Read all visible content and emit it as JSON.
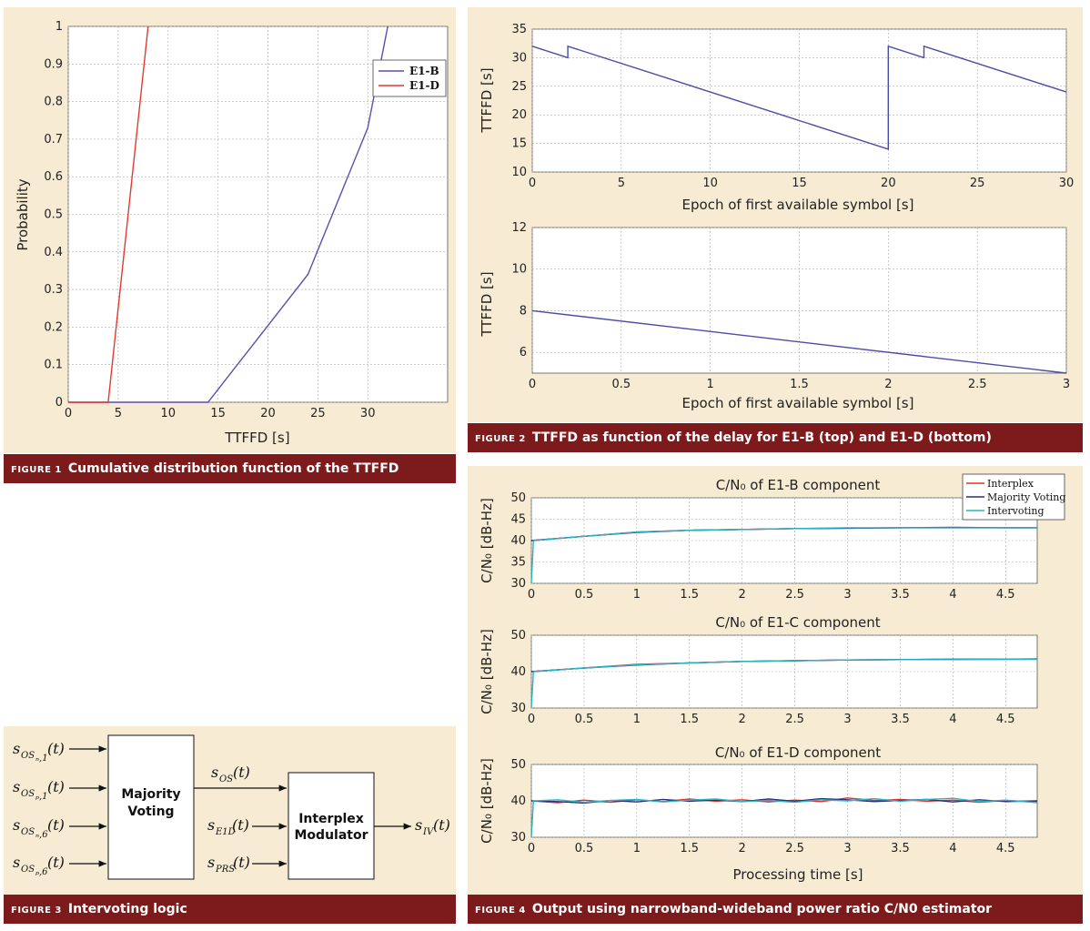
{
  "figure1": {
    "caption_num": "FIGURE 1",
    "caption_text": "Cumulative distribution function of the TTFFD",
    "chart_data": {
      "type": "line",
      "xlabel": "TTFFD [s]",
      "ylabel": "Probability",
      "xlim": [
        0,
        38
      ],
      "ylim": [
        0,
        1
      ],
      "xticks": [
        0,
        5,
        10,
        15,
        20,
        25,
        30
      ],
      "yticks": [
        0,
        0.1,
        0.2,
        0.3,
        0.4,
        0.5,
        0.6,
        0.7,
        0.8,
        0.9,
        1
      ],
      "grid": true,
      "legend_position": "top-right",
      "series": [
        {
          "name": "E1-B",
          "color": "#5a4fb0",
          "x": [
            0,
            14,
            24,
            30,
            32
          ],
          "y": [
            0,
            0,
            0.34,
            0.73,
            1
          ]
        },
        {
          "name": "E1-D",
          "color": "#e23b2e",
          "x": [
            0,
            4,
            8
          ],
          "y": [
            0,
            0,
            1
          ]
        }
      ]
    }
  },
  "figure2": {
    "caption_num": "FIGURE 2",
    "caption_text": "TTFFD as function of the delay for E1-B (top) and E1-D (bottom)",
    "chart_data": [
      {
        "type": "line",
        "xlabel": "Epoch of first available symbol [s]",
        "ylabel": "TTFFD [s]",
        "xlim": [
          0,
          30
        ],
        "ylim": [
          10,
          35
        ],
        "xticks": [
          0,
          5,
          10,
          15,
          20,
          25,
          30
        ],
        "yticks": [
          10,
          15,
          20,
          25,
          30,
          35
        ],
        "grid": true,
        "series": [
          {
            "color": "#4a4ca8",
            "x": [
              0,
              2,
              2,
              20,
              20,
              22,
              22,
              30
            ],
            "y": [
              32,
              30,
              32,
              14,
              32,
              30,
              32,
              24
            ]
          }
        ]
      },
      {
        "type": "line",
        "xlabel": "Epoch of first available symbol [s]",
        "ylabel": "TTFFD [s]",
        "xlim": [
          0,
          3
        ],
        "ylim": [
          5,
          12
        ],
        "xticks": [
          0,
          0.5,
          1,
          1.5,
          2,
          2.5,
          3
        ],
        "yticks": [
          6,
          8,
          10,
          12
        ],
        "grid": true,
        "series": [
          {
            "color": "#4a4ca8",
            "x": [
              0,
              3
            ],
            "y": [
              8,
              5
            ]
          }
        ]
      }
    ]
  },
  "figure3": {
    "caption_num": "FIGURE 3",
    "caption_text": "Intervoting logic",
    "blocks": {
      "majority_line1": "Majority",
      "majority_line2": "Voting",
      "interplex_line1": "Interplex",
      "interplex_line2": "Modulator"
    },
    "signals": {
      "input1": {
        "s": "s",
        "sub": "OS",
        "sub2": "ₙ,1",
        "arg": "(t)"
      },
      "input2": {
        "s": "s",
        "sub": "OS",
        "sub2": "ₚ,1",
        "arg": "(t)"
      },
      "input3": {
        "s": "s",
        "sub": "OS",
        "sub2": "ₙ,6",
        "arg": "(t)"
      },
      "input4": {
        "s": "s",
        "sub": "OS",
        "sub2": "ₚ,6",
        "arg": "(t)"
      },
      "os": {
        "s": "s",
        "sub": "OS",
        "arg": "(t)"
      },
      "e1d": {
        "s": "s",
        "sub": "E1D",
        "arg": "(t)"
      },
      "prs": {
        "s": "s",
        "sub": "PRS",
        "arg": "(t)"
      },
      "iv": {
        "s": "s",
        "sub": "IV",
        "arg": "(t)"
      }
    }
  },
  "figure4": {
    "caption_num": "FIGURE 4",
    "caption_text": "Output using narrowband-wideband power ratio C/N0 estimator",
    "legend": [
      "Interplex",
      "Majority Voting",
      "Intervoting"
    ],
    "series_colors": {
      "Interplex": "#e0312b",
      "Majority Voting": "#2f2f7a",
      "Intervoting": "#2bb3c7"
    },
    "ylabel": "C/N₀ [dB-Hz]",
    "xlabel": "Processing time [s]",
    "chart_data": [
      {
        "type": "line",
        "title": "C/N₀ of E1-B component",
        "xlim": [
          0,
          4.8
        ],
        "ylim": [
          30,
          50
        ],
        "xticks": [
          0,
          0.5,
          1,
          1.5,
          2,
          2.5,
          3,
          3.5,
          4,
          4.5
        ],
        "yticks": [
          30,
          35,
          40,
          45,
          50
        ],
        "grid": true,
        "legend_position": "top-right",
        "series": [
          {
            "name": "Interplex",
            "x": [
              0,
              0.5,
              1,
              1.5,
              2,
              2.5,
              3,
              3.5,
              4,
              4.5,
              4.8
            ],
            "y": [
              40,
              41,
              42,
              42.4,
              42.6,
              42.8,
              42.9,
              43,
              43,
              43,
              43
            ]
          },
          {
            "name": "Majority Voting",
            "x": [
              0,
              0.5,
              1,
              1.5,
              2,
              2.5,
              3,
              3.5,
              4,
              4.5,
              4.8
            ],
            "y": [
              40,
              41,
              41.9,
              42.4,
              42.6,
              42.8,
              42.9,
              43,
              43.1,
              43,
              43
            ]
          },
          {
            "name": "Intervoting",
            "x": [
              0,
              0.02,
              0.5,
              1,
              1.5,
              2,
              2.5,
              3,
              3.5,
              4,
              4.5,
              4.8
            ],
            "y": [
              30,
              40,
              41,
              42,
              42.4,
              42.6,
              42.8,
              43,
              43,
              43,
              43,
              43
            ]
          }
        ]
      },
      {
        "type": "line",
        "title": "C/N₀ of E1-C component",
        "xlim": [
          0,
          4.8
        ],
        "ylim": [
          30,
          50
        ],
        "xticks": [
          0,
          0.5,
          1,
          1.5,
          2,
          2.5,
          3,
          3.5,
          4,
          4.5
        ],
        "yticks": [
          30,
          40,
          50
        ],
        "grid": true,
        "series": [
          {
            "name": "Interplex",
            "x": [
              0,
              0.5,
              1,
              1.5,
              2,
              2.5,
              3,
              3.5,
              4,
              4.5,
              4.8
            ],
            "y": [
              40,
              41,
              42,
              42.4,
              42.8,
              43,
              43.2,
              43.3,
              43.4,
              43.4,
              43.5
            ]
          },
          {
            "name": "Majority Voting",
            "x": [
              0,
              0.5,
              1,
              1.5,
              2,
              2.5,
              3,
              3.5,
              4,
              4.5,
              4.8
            ],
            "y": [
              40,
              41,
              41.8,
              42.4,
              42.8,
              43,
              43.2,
              43.3,
              43.4,
              43.4,
              43.4
            ]
          },
          {
            "name": "Intervoting",
            "x": [
              0,
              0.02,
              0.5,
              1,
              1.5,
              2,
              2.5,
              3,
              3.5,
              4,
              4.5,
              4.8
            ],
            "y": [
              30,
              40,
              41,
              41.9,
              42.4,
              42.8,
              43,
              43.2,
              43.3,
              43.3,
              43.4,
              43.4
            ]
          }
        ]
      },
      {
        "type": "line",
        "title": "C/N₀ of E1-D component",
        "xlim": [
          0,
          4.8
        ],
        "ylim": [
          30,
          50
        ],
        "xticks": [
          0,
          0.5,
          1,
          1.5,
          2,
          2.5,
          3,
          3.5,
          4,
          4.5
        ],
        "yticks": [
          30,
          40,
          50
        ],
        "grid": true,
        "series": [
          {
            "name": "Interplex",
            "x": [
              0,
              0.25,
              0.5,
              0.75,
              1,
              1.25,
              1.5,
              1.75,
              2,
              2.25,
              2.5,
              2.75,
              3,
              3.25,
              3.5,
              3.75,
              4,
              4.25,
              4.5,
              4.8
            ],
            "y": [
              40,
              39.5,
              40.2,
              39.6,
              40.3,
              39.8,
              40.5,
              39.9,
              40.3,
              39.7,
              40.2,
              39.8,
              40.8,
              40.1,
              40.4,
              39.9,
              40.2,
              39.6,
              40.1,
              39.7
            ]
          },
          {
            "name": "Majority Voting",
            "x": [
              0,
              0.25,
              0.5,
              0.75,
              1,
              1.25,
              1.5,
              1.75,
              2,
              2.25,
              2.5,
              2.75,
              3,
              3.25,
              3.5,
              3.75,
              4,
              4.25,
              4.5,
              4.8
            ],
            "y": [
              40,
              39.8,
              39.4,
              40.1,
              39.7,
              40.4,
              39.9,
              40.2,
              39.8,
              40.5,
              39.9,
              40.6,
              40.3,
              39.8,
              40.1,
              40.4,
              39.7,
              40.3,
              39.8,
              40
            ]
          },
          {
            "name": "Intervoting",
            "x": [
              0,
              0.02,
              0.25,
              0.5,
              0.75,
              1,
              1.25,
              1.5,
              1.75,
              2,
              2.25,
              2.5,
              2.75,
              3,
              3.25,
              3.5,
              3.75,
              4,
              4.25,
              4.5,
              4.8
            ],
            "y": [
              30,
              40,
              40.3,
              39.6,
              40.1,
              40.4,
              39.7,
              40.2,
              40.5,
              39.8,
              40.1,
              39.6,
              40.3,
              40,
              40.6,
              39.9,
              40.4,
              40.7,
              39.8,
              40.2,
              39.5
            ]
          }
        ]
      }
    ]
  }
}
